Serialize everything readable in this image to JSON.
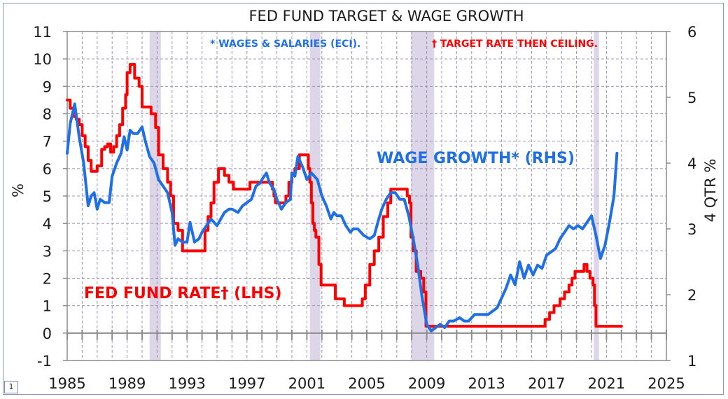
{
  "page_number": "1",
  "chart_data": {
    "type": "line",
    "title": "FED FUND TARGET & WAGE GROWTH",
    "ylabel_left": "%",
    "ylabel_right": "4 QTR %",
    "left_axis": {
      "min": -1,
      "max": 11,
      "ticks": [
        "-1",
        "0",
        "1",
        "2",
        "3",
        "4",
        "5",
        "6",
        "7",
        "8",
        "9",
        "10",
        "11"
      ]
    },
    "right_axis": {
      "min": 1,
      "max": 6,
      "ticks": [
        "1",
        "2",
        "3",
        "4",
        "5",
        "6"
      ]
    },
    "x_axis": {
      "min": 1985,
      "max": 2025,
      "ticks": [
        "1985",
        "1989",
        "1993",
        "1997",
        "2001",
        "2005",
        "2009",
        "2013",
        "2017",
        "2021",
        "2025"
      ]
    },
    "recessions": [
      [
        1990.5,
        1991.25
      ],
      [
        2001.2,
        2001.9
      ],
      [
        2007.95,
        2009.5
      ],
      [
        2020.15,
        2020.5
      ]
    ],
    "annotations": {
      "wages_note": "* WAGES & SALARIES (ECI).",
      "target_note": "† TARGET RATE THEN CEILING.",
      "wage_label": "WAGE GROWTH* (RHS)",
      "fed_label": "FED FUND RATE† (LHS)"
    },
    "colors": {
      "fed": "#ff0000",
      "wage": "#1f6fe5",
      "recession": "#ddd6e8",
      "grid": "#9b93b3"
    },
    "series": [
      {
        "name": "Fed Fund Rate (LHS)",
        "axis": "left",
        "x": [
          1985.0,
          1985.2,
          1985.4,
          1985.6,
          1985.8,
          1986.0,
          1986.2,
          1986.4,
          1986.6,
          1986.8,
          1987.0,
          1987.3,
          1987.5,
          1987.7,
          1987.9,
          1988.1,
          1988.3,
          1988.5,
          1988.7,
          1988.9,
          1989.0,
          1989.2,
          1989.5,
          1989.8,
          1990.0,
          1990.3,
          1990.6,
          1990.9,
          1991.1,
          1991.4,
          1991.7,
          1991.9,
          1992.1,
          1992.4,
          1992.7,
          1993.0,
          1994.0,
          1994.2,
          1994.4,
          1994.6,
          1994.8,
          1995.1,
          1995.5,
          1995.8,
          1996.1,
          1996.5,
          1997.0,
          1997.2,
          1998.0,
          1998.7,
          1998.8,
          1998.9,
          1999.4,
          1999.6,
          1999.8,
          2000.0,
          2000.2,
          2000.5,
          2000.8,
          2001.0,
          2001.1,
          2001.2,
          2001.3,
          2001.4,
          2001.5,
          2001.6,
          2001.8,
          2001.95,
          2002.5,
          2002.9,
          2003.5,
          2004.5,
          2004.7,
          2004.9,
          2005.2,
          2005.5,
          2005.8,
          2006.1,
          2006.4,
          2006.6,
          2007.5,
          2007.7,
          2007.85,
          2007.95,
          2008.1,
          2008.3,
          2008.6,
          2008.8,
          2008.95,
          2015.9,
          2016.9,
          2017.2,
          2017.5,
          2017.9,
          2018.2,
          2018.5,
          2018.7,
          2018.9,
          2019.5,
          2019.7,
          2019.9,
          2020.1,
          2020.2,
          2020.3,
          2021.5,
          2022.0
        ],
        "values": [
          8.5,
          8.2,
          7.9,
          7.8,
          7.6,
          7.2,
          6.8,
          6.3,
          5.9,
          5.9,
          6.1,
          6.7,
          6.8,
          6.9,
          6.6,
          6.8,
          7.2,
          7.6,
          8.2,
          8.7,
          9.5,
          9.8,
          9.3,
          9.0,
          8.25,
          8.25,
          8.0,
          7.5,
          6.5,
          6.0,
          5.5,
          5.0,
          4.0,
          3.75,
          3.0,
          3.0,
          3.0,
          3.75,
          4.25,
          4.75,
          5.5,
          6.0,
          5.75,
          5.5,
          5.25,
          5.25,
          5.25,
          5.5,
          5.5,
          5.25,
          5.0,
          4.75,
          4.75,
          5.0,
          5.5,
          5.75,
          6.0,
          6.5,
          6.5,
          6.5,
          6.0,
          5.5,
          4.75,
          4.0,
          3.75,
          3.5,
          2.5,
          1.75,
          1.75,
          1.25,
          1.0,
          1.0,
          1.25,
          1.75,
          2.5,
          3.0,
          3.5,
          4.25,
          4.75,
          5.25,
          5.25,
          5.0,
          4.75,
          3.5,
          3.0,
          2.25,
          2.0,
          1.5,
          0.25,
          0.25,
          0.5,
          0.75,
          1.0,
          1.25,
          1.5,
          1.75,
          2.0,
          2.25,
          2.5,
          2.25,
          2.0,
          1.75,
          1.0,
          0.25,
          0.25,
          0.25
        ]
      },
      {
        "name": "Wage Growth (RHS)",
        "axis": "right",
        "x": [
          1985.0,
          1985.2,
          1985.5,
          1985.8,
          1986.1,
          1986.4,
          1986.6,
          1986.8,
          1987.0,
          1987.2,
          1987.5,
          1987.8,
          1988.0,
          1988.3,
          1988.6,
          1988.8,
          1989.0,
          1989.2,
          1989.4,
          1989.7,
          1990.0,
          1990.2,
          1990.5,
          1990.8,
          1991.1,
          1991.4,
          1991.7,
          1992.0,
          1992.2,
          1992.4,
          1992.7,
          1993.0,
          1993.2,
          1993.5,
          1993.8,
          1994.0,
          1994.3,
          1994.6,
          1995.0,
          1995.5,
          1995.8,
          1996.0,
          1996.4,
          1996.7,
          1997.0,
          1997.3,
          1997.6,
          1997.9,
          1998.0,
          1998.3,
          1998.5,
          1998.8,
          1999.0,
          1999.3,
          1999.6,
          1999.9,
          2000.0,
          2000.2,
          2000.4,
          2000.7,
          2001.0,
          2001.3,
          2001.7,
          2002.0,
          2002.3,
          2002.6,
          2002.8,
          2003.0,
          2003.3,
          2003.6,
          2003.9,
          2004.1,
          2004.4,
          2004.8,
          2005.2,
          2005.5,
          2005.8,
          2006.0,
          2006.3,
          2006.6,
          2006.9,
          2007.2,
          2007.5,
          2007.8,
          2008.1,
          2008.4,
          2008.7,
          2009.0,
          2009.3,
          2009.6,
          2009.9,
          2010.2,
          2010.5,
          2010.8,
          2011.2,
          2011.5,
          2011.8,
          2012.0,
          2012.2,
          2012.5,
          2012.8,
          2013.1,
          2013.4,
          2013.7,
          2014.0,
          2014.3,
          2014.6,
          2014.9,
          2015.2,
          2015.5,
          2015.8,
          2016.1,
          2016.4,
          2016.7,
          2017.0,
          2017.3,
          2017.6,
          2017.9,
          2018.2,
          2018.5,
          2018.8,
          2019.1,
          2019.4,
          2019.7,
          2020.0,
          2020.3,
          2020.6,
          2020.9,
          2021.2,
          2021.5,
          2021.7
        ],
        "values": [
          4.15,
          4.6,
          4.9,
          4.4,
          4.0,
          3.35,
          3.5,
          3.55,
          3.3,
          3.45,
          3.4,
          3.4,
          3.8,
          4.0,
          4.15,
          4.4,
          4.2,
          4.5,
          4.45,
          4.45,
          4.55,
          4.35,
          4.1,
          4.0,
          3.75,
          3.65,
          3.55,
          3.25,
          2.75,
          2.85,
          2.8,
          2.8,
          3.1,
          2.8,
          2.85,
          2.95,
          3.05,
          3.15,
          3.05,
          3.25,
          3.3,
          3.3,
          3.25,
          3.35,
          3.4,
          3.45,
          3.65,
          3.7,
          3.75,
          3.85,
          3.7,
          3.6,
          3.45,
          3.3,
          3.4,
          3.45,
          3.85,
          3.8,
          4.1,
          3.95,
          3.75,
          3.85,
          3.75,
          3.5,
          3.35,
          3.15,
          3.25,
          3.2,
          3.2,
          3.05,
          2.95,
          3.0,
          3.0,
          2.9,
          2.85,
          2.9,
          3.15,
          3.3,
          3.45,
          3.55,
          3.55,
          3.45,
          3.45,
          3.2,
          2.85,
          2.45,
          1.95,
          1.55,
          1.45,
          1.5,
          1.55,
          1.5,
          1.6,
          1.6,
          1.65,
          1.6,
          1.6,
          1.65,
          1.7,
          1.7,
          1.7,
          1.7,
          1.75,
          1.8,
          1.95,
          2.1,
          2.3,
          2.15,
          2.5,
          2.25,
          2.45,
          2.3,
          2.45,
          2.4,
          2.6,
          2.65,
          2.7,
          2.85,
          2.95,
          3.05,
          3.0,
          3.05,
          3.0,
          3.1,
          3.2,
          2.9,
          2.55,
          2.75,
          3.1,
          3.5,
          4.15
        ]
      }
    ]
  }
}
